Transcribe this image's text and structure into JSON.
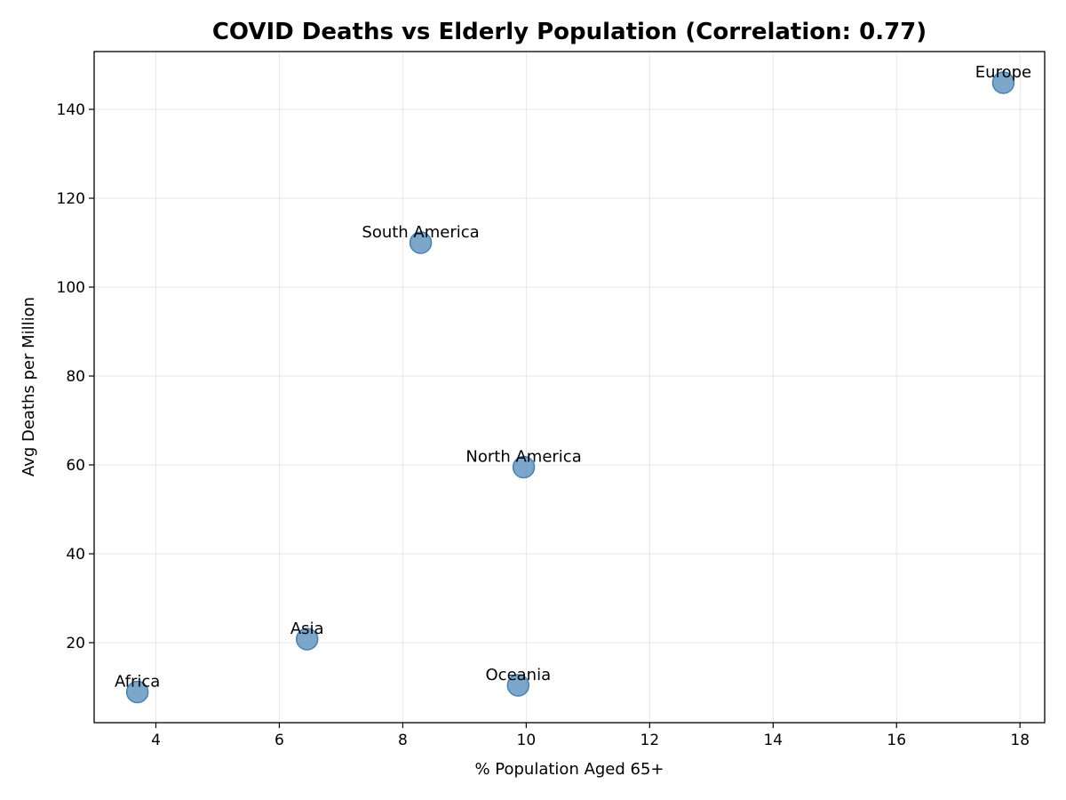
{
  "chart_data": {
    "type": "scatter",
    "title": "COVID Deaths vs Elderly Population (Correlation: 0.77)",
    "xlabel": "% Population Aged 65+",
    "ylabel": "Avg Deaths per Million",
    "xlim": [
      3.0,
      18.4
    ],
    "ylim": [
      2.0,
      153.0
    ],
    "xticks": [
      4,
      6,
      8,
      10,
      12,
      14,
      16,
      18
    ],
    "yticks": [
      20,
      40,
      60,
      80,
      100,
      120,
      140
    ],
    "grid": true,
    "marker_color": "#4682b4",
    "points": [
      {
        "label": "Europe",
        "x": 17.73,
        "y": 146.0
      },
      {
        "label": "South America",
        "x": 8.29,
        "y": 110.0
      },
      {
        "label": "North America",
        "x": 9.96,
        "y": 59.5
      },
      {
        "label": "Asia",
        "x": 6.45,
        "y": 20.8
      },
      {
        "label": "Oceania",
        "x": 9.87,
        "y": 10.4
      },
      {
        "label": "Africa",
        "x": 3.7,
        "y": 8.9
      }
    ]
  }
}
